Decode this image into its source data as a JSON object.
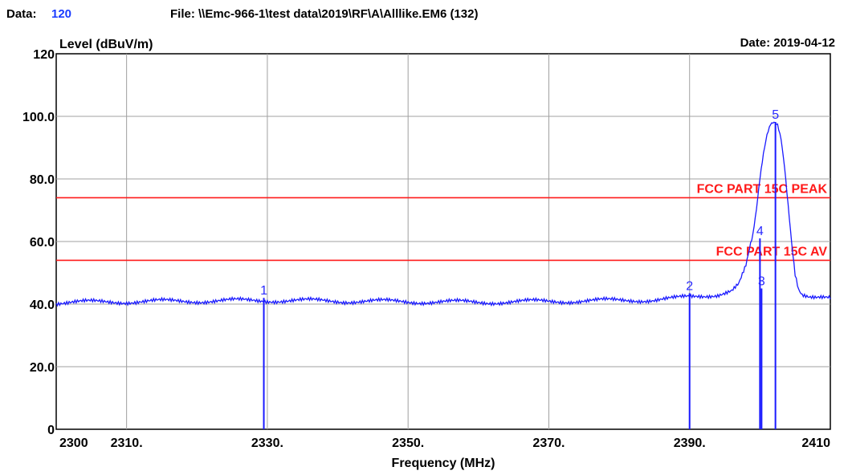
{
  "header": {
    "data_label": "Data:",
    "data_value": "120",
    "file": "File: \\\\Emc-966-1\\test data\\2019\\RF\\A\\Alllike.EM6  (132)",
    "date": "Date: 2019-04-12"
  },
  "chart_data": {
    "type": "line",
    "ylabel": "Level (dBuV/m)",
    "xlabel": "Frequency (MHz)",
    "xlim": [
      2300,
      2410
    ],
    "ylim": [
      0,
      120
    ],
    "x_ticks": [
      {
        "value": 2300,
        "label": "2300"
      },
      {
        "value": 2310,
        "label": "2310."
      },
      {
        "value": 2330,
        "label": "2330."
      },
      {
        "value": 2350,
        "label": "2350."
      },
      {
        "value": 2370,
        "label": "2370."
      },
      {
        "value": 2390,
        "label": "2390."
      },
      {
        "value": 2410,
        "label": "2410"
      }
    ],
    "y_ticks": [
      {
        "value": 0,
        "label": "0"
      },
      {
        "value": 20,
        "label": "20.0"
      },
      {
        "value": 40,
        "label": "40.0"
      },
      {
        "value": 60,
        "label": "60.0"
      },
      {
        "value": 80,
        "label": "80.0"
      },
      {
        "value": 100,
        "label": "100.0"
      },
      {
        "value": 120,
        "label": "120"
      }
    ],
    "grid_x": [
      2310,
      2330,
      2350,
      2370,
      2390
    ],
    "grid_y": [
      20,
      40,
      60,
      80,
      100
    ],
    "limits": [
      {
        "label": "FCC PART 15C PEAK",
        "value": 74,
        "color": "#ff1a1a"
      },
      {
        "label": "FCC PART 15C  AV",
        "value": 54,
        "color": "#ff1a1a"
      }
    ],
    "series": [
      {
        "color": "#1a1aff",
        "x": [
          2300,
          2310,
          2320,
          2330,
          2340,
          2350,
          2360,
          2370,
          2380,
          2385,
          2388,
          2390,
          2392,
          2394,
          2396,
          2397,
          2398,
          2399,
          2399.5,
          2400,
          2400.5,
          2401,
          2401.5,
          2402,
          2402.5,
          2403,
          2403.5,
          2404,
          2404.5,
          2405,
          2405.5,
          2406,
          2407,
          2408,
          2410
        ],
        "y": [
          40.5,
          40.8,
          41.0,
          41.2,
          41.0,
          40.8,
          40.6,
          40.9,
          41.2,
          41.4,
          41.8,
          42.2,
          42.6,
          43.2,
          44.5,
          46.5,
          52,
          62,
          70,
          80,
          88,
          94,
          97.5,
          98.2,
          97.5,
          93,
          84,
          72,
          60,
          50,
          45,
          43.2,
          42.2,
          41.8,
          41.6
        ]
      }
    ],
    "markers": [
      {
        "label": "1",
        "x": 2329.5,
        "y": 42
      },
      {
        "label": "2",
        "x": 2390,
        "y": 43.5
      },
      {
        "label": "3",
        "x": 2400,
        "y": 45
      },
      {
        "label": "4",
        "x": 2400,
        "y": 61
      },
      {
        "label": "5",
        "x": 2402.2,
        "y": 98.2
      }
    ]
  }
}
